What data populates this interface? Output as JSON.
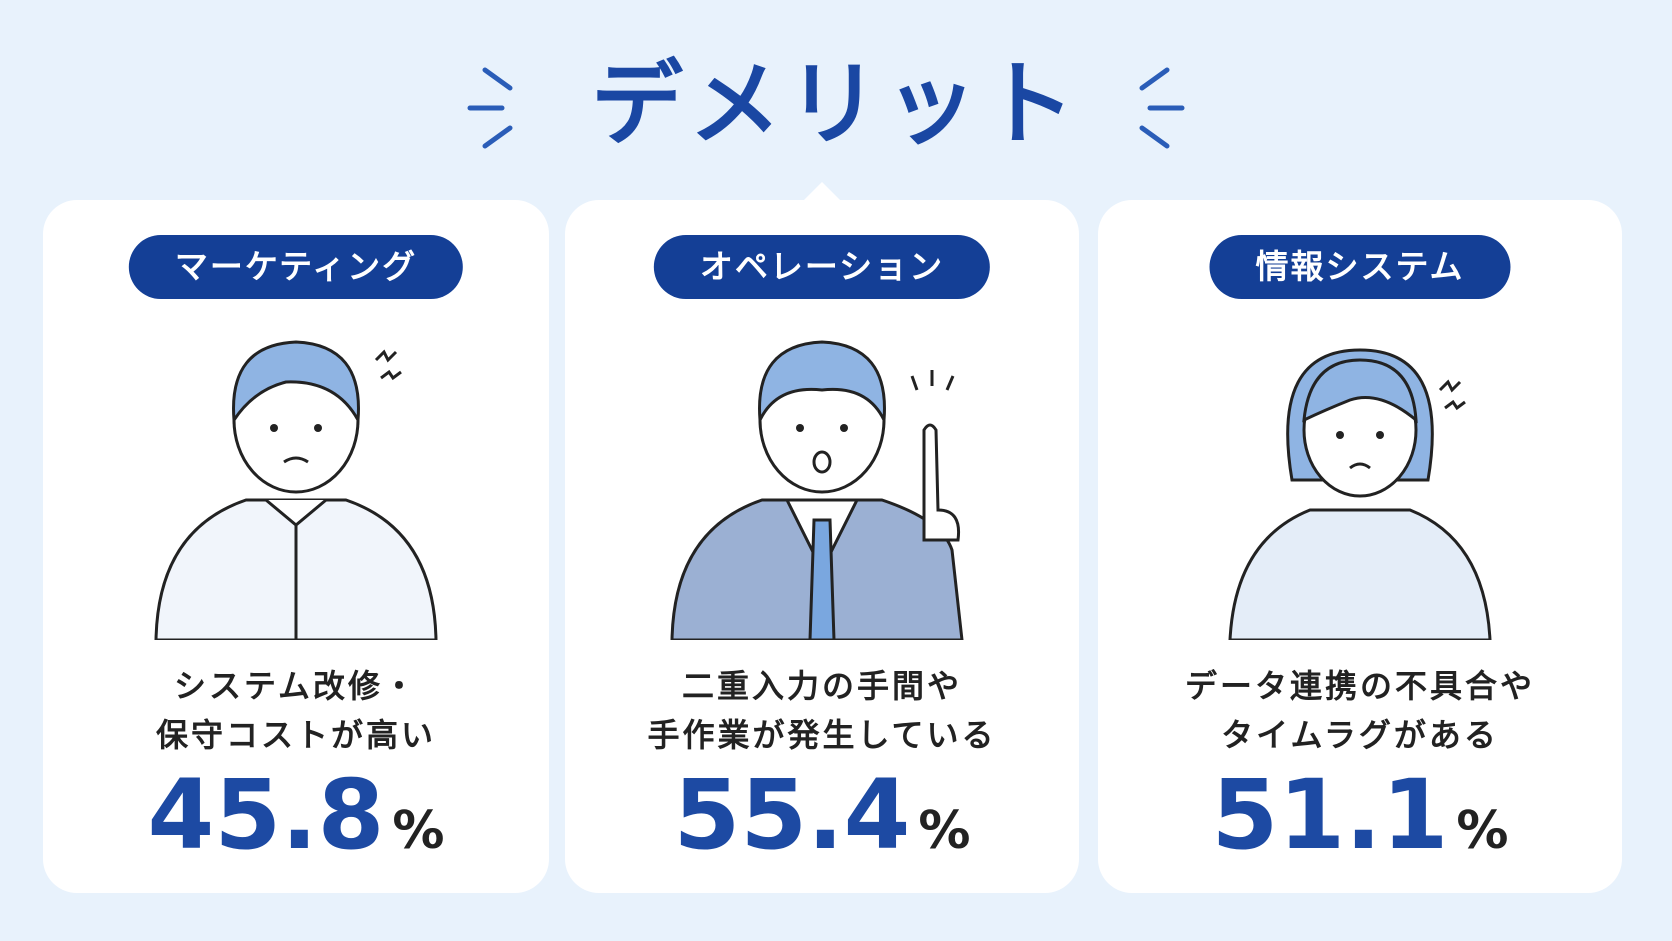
{
  "title": "デメリット",
  "cards": [
    {
      "label": "マーケティング",
      "lines": [
        "システム改修・",
        "保守コストが高い"
      ],
      "value": "45.8",
      "unit": "%"
    },
    {
      "label": "オペレーション",
      "lines": [
        "二重入力の手間や",
        "手作業が発生している"
      ],
      "value": "55.4",
      "unit": "%"
    },
    {
      "label": "情報システム",
      "lines": [
        "データ連携の不具合や",
        "タイムラグがある"
      ],
      "value": "51.1",
      "unit": "%"
    }
  ]
}
